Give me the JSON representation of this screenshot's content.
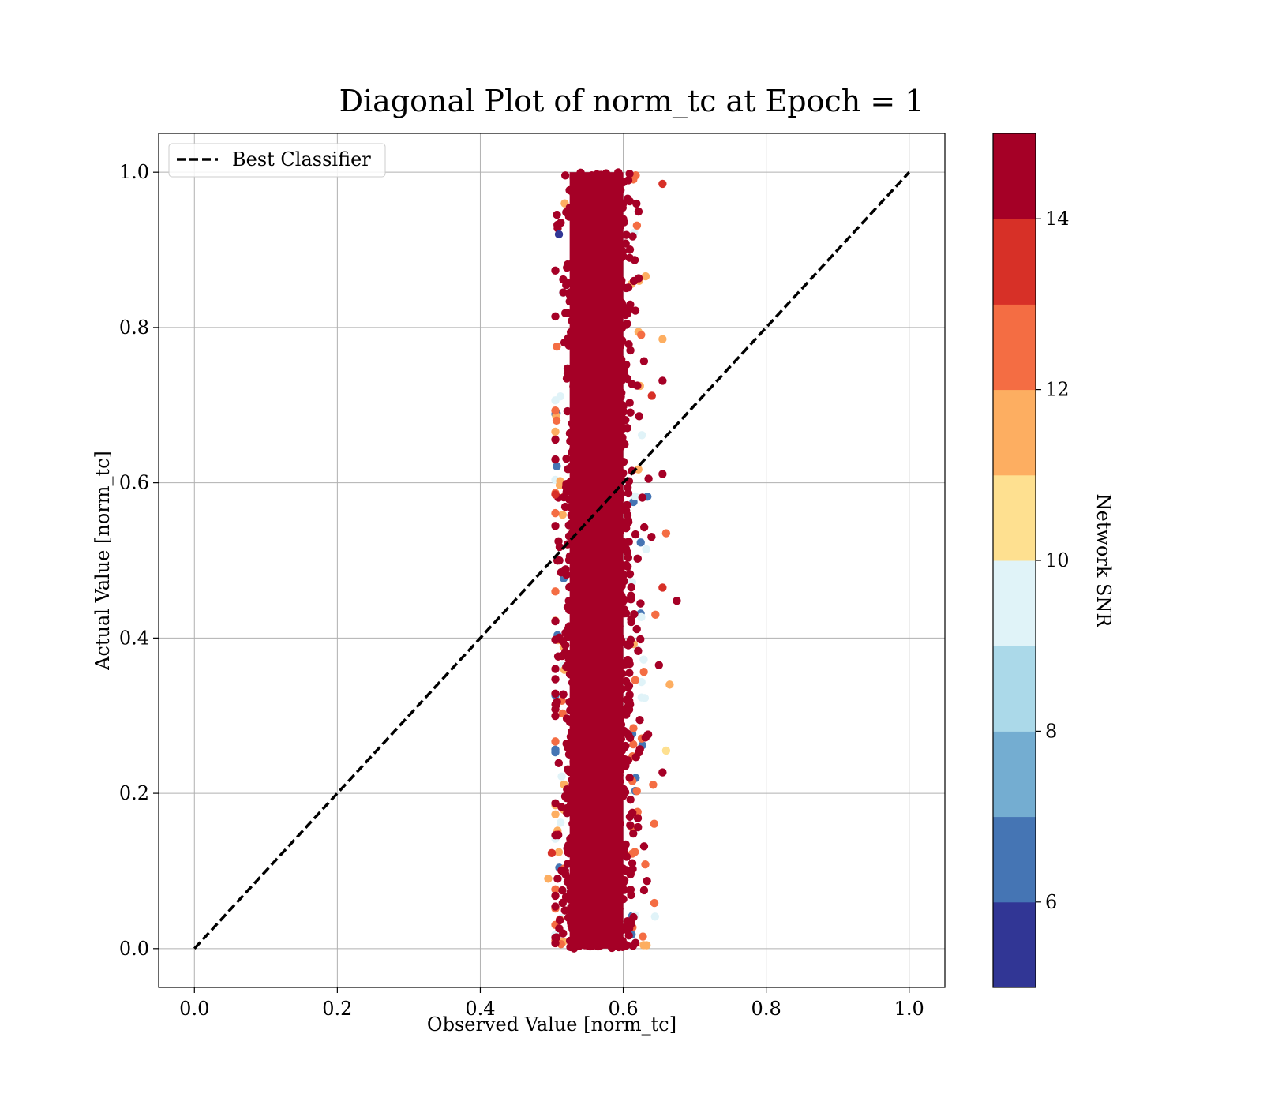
{
  "chart_data": {
    "type": "scatter",
    "title": "Diagonal Plot of norm_tc at Epoch = 1",
    "xlabel": "Observed Value [norm_tc]",
    "ylabel": "Actual Value [norm_tc]",
    "xlim": [
      -0.05,
      1.05
    ],
    "ylim": [
      -0.05,
      1.05
    ],
    "xticks": [
      "0.0",
      "0.2",
      "0.4",
      "0.6",
      "0.8",
      "1.0"
    ],
    "yticks": [
      "0.0",
      "0.2",
      "0.4",
      "0.6",
      "0.8",
      "1.0"
    ],
    "grid": true,
    "legend": {
      "placement": "upper-left",
      "entries": [
        "Best Classifier"
      ]
    },
    "reference_line": {
      "name": "Best Classifier",
      "x": [
        0.0,
        1.0
      ],
      "y": [
        0.0,
        1.0
      ],
      "style": "dashed",
      "color": "#000000"
    },
    "scatter": {
      "x_range": [
        0.5,
        0.68
      ],
      "x_center": 0.565,
      "y_range": [
        0.0,
        1.0
      ],
      "color_variable": "Network SNR",
      "dominant_color": "#a50026",
      "points_approx": [
        {
          "x": 0.655,
          "y": 0.985,
          "snr": 13.5
        },
        {
          "x": 0.675,
          "y": 0.448,
          "snr": 15
        },
        {
          "x": 0.66,
          "y": 0.535,
          "snr": 12.5
        },
        {
          "x": 0.665,
          "y": 0.34,
          "snr": 11
        },
        {
          "x": 0.655,
          "y": 0.785,
          "snr": 11.5
        },
        {
          "x": 0.64,
          "y": 0.712,
          "snr": 13
        },
        {
          "x": 0.615,
          "y": 0.86,
          "snr": 15
        },
        {
          "x": 0.51,
          "y": 0.92,
          "snr": 5
        },
        {
          "x": 0.505,
          "y": 0.585,
          "snr": 13
        },
        {
          "x": 0.495,
          "y": 0.09,
          "snr": 11.5
        },
        {
          "x": 0.5,
          "y": 0.123,
          "snr": 13.5
        },
        {
          "x": 0.66,
          "y": 0.255,
          "snr": 10.5
        },
        {
          "x": 0.645,
          "y": 0.43,
          "snr": 12.5
        },
        {
          "x": 0.65,
          "y": 0.365,
          "snr": 15
        },
        {
          "x": 0.655,
          "y": 0.465,
          "snr": 13
        }
      ]
    },
    "colorbar": {
      "label": "Network SNR",
      "range": [
        5,
        15
      ],
      "ticks": [
        "6",
        "8",
        "10",
        "12",
        "14"
      ],
      "bands": [
        "#313695",
        "#4575b4",
        "#74add1",
        "#abd9e9",
        "#e0f3f8",
        "#fee090",
        "#fdae61",
        "#f46d43",
        "#d73027",
        "#a50026"
      ]
    }
  }
}
